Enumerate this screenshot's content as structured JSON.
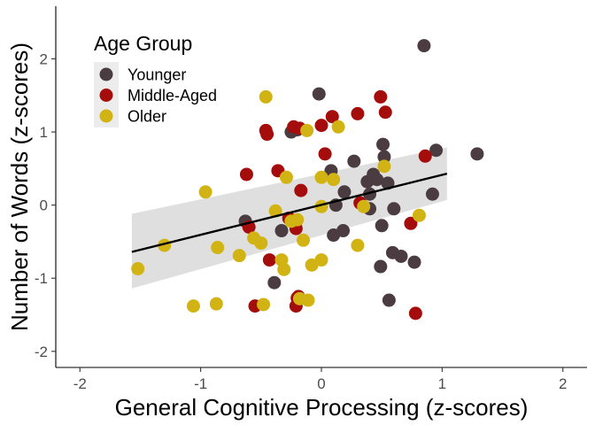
{
  "chart_data": {
    "type": "scatter",
    "xlabel": "General Cognitive Processing (z-scores)",
    "ylabel": "Number of Words (z-scores)",
    "xlim": [
      -2.2,
      2.2
    ],
    "ylim": [
      -2.22,
      2.72
    ],
    "x_ticks": [
      -2,
      -1,
      0,
      1,
      2
    ],
    "y_ticks": [
      -2,
      -1,
      0,
      1,
      2
    ],
    "x_tick_labels": [
      "-2",
      "-1",
      "0",
      "1",
      "2"
    ],
    "y_tick_labels": [
      "-2",
      "-1",
      "0",
      "1",
      "2"
    ],
    "grid": false,
    "legend": {
      "title": "Age Group",
      "position": "top-left",
      "entries": [
        "Younger",
        "Middle-Aged",
        "Older"
      ]
    },
    "colors": {
      "Younger": "#4a3c40",
      "Middle-Aged": "#a50d0d",
      "Older": "#d2b314",
      "trend_line": "#000000",
      "confidence_band": "#d9d9d9"
    },
    "trend": {
      "x": [
        -1.57,
        1.04
      ],
      "y": [
        -0.64,
        0.43
      ],
      "ci_upper": [
        -0.12,
        0.79
      ],
      "ci_lower": [
        -1.14,
        0.07
      ]
    },
    "series": [
      {
        "name": "Younger",
        "x": [
          0.85,
          -0.02,
          0.51,
          0.95,
          1.29,
          -0.2,
          -0.25,
          0.08,
          0.43,
          0.52,
          0.27,
          0.46,
          0.38,
          0.4,
          0.55,
          0.92,
          0.19,
          0.12,
          0.4,
          0.6,
          -0.63,
          -0.33,
          0.18,
          0.5,
          0.59,
          0.66,
          0.77,
          0.49,
          -0.39,
          0.1,
          0.56
        ],
        "y": [
          2.18,
          1.52,
          0.83,
          0.75,
          0.7,
          1.03,
          1.0,
          0.47,
          0.42,
          0.66,
          0.6,
          0.35,
          0.32,
          0.15,
          0.3,
          0.15,
          0.18,
          0.0,
          -0.05,
          -0.05,
          -0.22,
          -0.35,
          -0.35,
          -0.28,
          -0.65,
          -0.7,
          -0.78,
          -0.84,
          -1.06,
          -0.41,
          -1.3
        ]
      },
      {
        "name": "Middle-Aged",
        "x": [
          0.49,
          0.53,
          0.09,
          0.3,
          -0.46,
          -0.45,
          -0.23,
          -0.18,
          0.0,
          0.86,
          -0.62,
          -0.36,
          -0.17,
          0.03,
          0.32,
          -0.27,
          -0.21,
          -0.6,
          0.74,
          -0.43,
          -0.55,
          -0.19,
          -0.2,
          -0.21,
          0.78
        ],
        "y": [
          1.48,
          1.27,
          1.21,
          1.25,
          1.02,
          0.97,
          1.07,
          1.05,
          1.09,
          0.67,
          0.42,
          0.47,
          0.2,
          0.7,
          0.03,
          -0.18,
          -0.32,
          -0.3,
          -0.25,
          -0.75,
          -1.38,
          -1.25,
          -1.27,
          -1.38,
          -1.48
        ]
      },
      {
        "name": "Older",
        "x": [
          -0.46,
          0.14,
          -0.12,
          -0.96,
          -0.29,
          0.52,
          0.0,
          0.1,
          0.81,
          -0.38,
          -0.2,
          -0.25,
          0.0,
          -1.3,
          -0.56,
          -0.5,
          -0.86,
          -0.68,
          -0.33,
          -0.31,
          -0.08,
          -0.48,
          -0.18,
          -0.11,
          -1.52,
          -1.06,
          -0.87,
          -0.15,
          0.0,
          0.3,
          0.35
        ],
        "y": [
          1.48,
          1.07,
          1.02,
          0.18,
          0.38,
          0.53,
          0.38,
          0.35,
          -0.14,
          -0.08,
          -0.2,
          -0.22,
          -0.02,
          -0.55,
          -0.45,
          -0.52,
          -0.58,
          -0.69,
          -0.75,
          -0.88,
          -0.82,
          -1.36,
          -1.28,
          -1.3,
          -0.87,
          -1.38,
          -1.35,
          -0.48,
          -0.75,
          -0.55,
          -0.02
        ]
      }
    ]
  }
}
